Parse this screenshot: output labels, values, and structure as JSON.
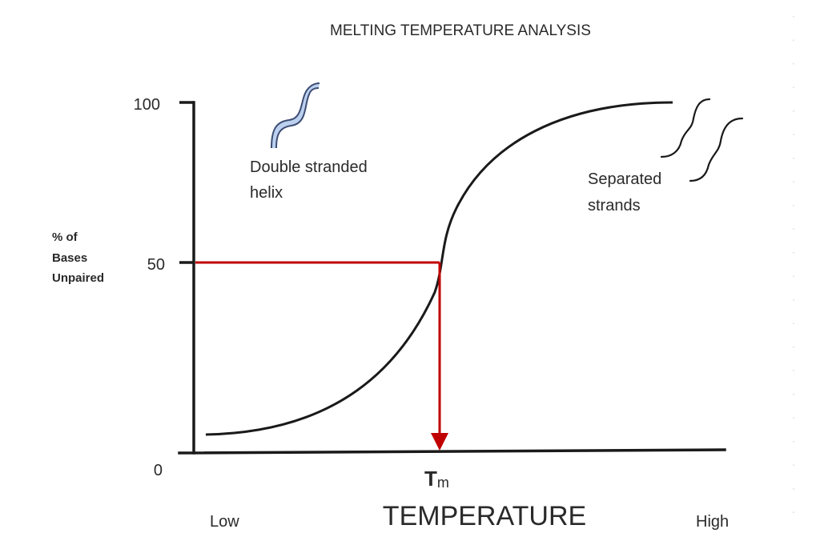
{
  "title": "MELTING TEMPERATURE ANALYSIS",
  "y_axis": {
    "label_lines": [
      "% of",
      "Bases",
      "Unpaired"
    ],
    "ticks": [
      "100",
      "50",
      "0"
    ]
  },
  "x_axis": {
    "low_label": "Low",
    "high_label": "High",
    "title": "TEMPERATURE",
    "tm_symbol": "T",
    "tm_subscript": "m"
  },
  "annotations": {
    "double_helix": [
      "Double stranded",
      "helix"
    ],
    "separated": [
      "Separated",
      "strands"
    ]
  },
  "icons": {
    "double_helix": "double-strand-icon",
    "separated": "separated-strands-icon"
  },
  "colors": {
    "curve": "#1a1a1a",
    "axis": "#1a1a1a",
    "tm_marker": "#c00000",
    "helix_outline": "#3d4d73",
    "helix_fill": "#bcd0ef"
  },
  "chart_data": {
    "type": "line",
    "title": "MELTING TEMPERATURE ANALYSIS",
    "xlabel": "TEMPERATURE",
    "ylabel": "% of Bases Unpaired",
    "ylim": [
      0,
      100
    ],
    "ytick_labels": [
      "0",
      "50",
      "100"
    ],
    "xtick_labels": [
      "Low",
      "Tm",
      "High"
    ],
    "midpoint": {
      "x": "Tm",
      "y": 50
    },
    "curve_shape": "sigmoid"
  }
}
